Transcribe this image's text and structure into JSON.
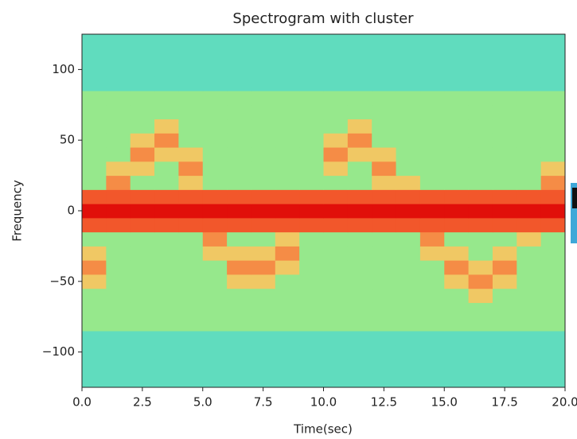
{
  "chart_data": {
    "type": "heatmap",
    "title": "Spectrogram with cluster",
    "x_label": "Time(sec)",
    "y_label": "Frequency",
    "colormap": "rainbow",
    "x": [
      0.5,
      1.5,
      2.5,
      3.5,
      4.5,
      5.5,
      6.5,
      7.5,
      8.5,
      9.5,
      10.5,
      11.5,
      12.5,
      13.5,
      14.5,
      15.5,
      16.5,
      17.5,
      18.5,
      19.5
    ],
    "y": [
      -120,
      -110,
      -100,
      -90,
      -80,
      -70,
      -60,
      -50,
      -40,
      -30,
      -20,
      -10,
      0,
      10,
      20,
      30,
      40,
      50,
      60,
      70,
      80,
      90,
      100,
      110,
      120
    ],
    "z": [
      [
        0.3,
        0.3,
        0.3,
        0.3,
        0.3,
        0.3,
        0.3,
        0.3,
        0.3,
        0.3,
        0.3,
        0.3,
        0.3,
        0.3,
        0.3,
        0.3,
        0.3,
        0.3,
        0.3,
        0.3
      ],
      [
        0.3,
        0.3,
        0.3,
        0.3,
        0.3,
        0.3,
        0.3,
        0.3,
        0.3,
        0.3,
        0.3,
        0.3,
        0.3,
        0.3,
        0.3,
        0.3,
        0.3,
        0.3,
        0.3,
        0.3
      ],
      [
        0.3,
        0.3,
        0.3,
        0.3,
        0.3,
        0.3,
        0.3,
        0.3,
        0.3,
        0.3,
        0.3,
        0.3,
        0.3,
        0.3,
        0.3,
        0.3,
        0.3,
        0.3,
        0.3,
        0.3
      ],
      [
        0.3,
        0.3,
        0.3,
        0.3,
        0.3,
        0.3,
        0.3,
        0.3,
        0.3,
        0.3,
        0.3,
        0.3,
        0.3,
        0.3,
        0.3,
        0.3,
        0.3,
        0.3,
        0.3,
        0.3
      ],
      [
        0.4,
        0.4,
        0.4,
        0.4,
        0.4,
        0.4,
        0.4,
        0.4,
        0.4,
        0.4,
        0.4,
        0.4,
        0.4,
        0.4,
        0.4,
        0.4,
        0.4,
        0.4,
        0.4,
        0.4
      ],
      [
        0.4,
        0.4,
        0.4,
        0.4,
        0.4,
        0.4,
        0.4,
        0.4,
        0.4,
        0.4,
        0.4,
        0.4,
        0.4,
        0.4,
        0.4,
        0.4,
        0.4,
        0.4,
        0.4,
        0.4
      ],
      [
        0.4,
        0.4,
        0.4,
        0.4,
        0.4,
        0.4,
        0.4,
        0.4,
        0.4,
        0.4,
        0.4,
        0.4,
        0.4,
        0.4,
        0.4,
        0.4,
        0.55,
        0.4,
        0.4,
        0.4
      ],
      [
        0.55,
        0.4,
        0.4,
        0.4,
        0.4,
        0.4,
        0.55,
        0.55,
        0.4,
        0.4,
        0.4,
        0.4,
        0.4,
        0.4,
        0.4,
        0.55,
        0.7,
        0.55,
        0.4,
        0.4
      ],
      [
        0.7,
        0.4,
        0.4,
        0.4,
        0.4,
        0.4,
        0.7,
        0.7,
        0.55,
        0.4,
        0.4,
        0.4,
        0.4,
        0.4,
        0.4,
        0.7,
        0.55,
        0.7,
        0.4,
        0.4
      ],
      [
        0.55,
        0.4,
        0.4,
        0.4,
        0.4,
        0.55,
        0.55,
        0.55,
        0.7,
        0.4,
        0.4,
        0.4,
        0.4,
        0.4,
        0.55,
        0.55,
        0.4,
        0.55,
        0.4,
        0.4
      ],
      [
        0.4,
        0.4,
        0.4,
        0.4,
        0.4,
        0.7,
        0.4,
        0.4,
        0.55,
        0.4,
        0.4,
        0.4,
        0.4,
        0.4,
        0.7,
        0.4,
        0.4,
        0.4,
        0.55,
        0.4
      ],
      [
        0.8,
        0.8,
        0.8,
        0.8,
        0.8,
        0.8,
        0.8,
        0.8,
        0.8,
        0.8,
        0.8,
        0.8,
        0.8,
        0.8,
        0.8,
        0.8,
        0.8,
        0.8,
        0.8,
        0.8
      ],
      [
        1.0,
        1.0,
        1.0,
        1.0,
        1.0,
        1.0,
        1.0,
        1.0,
        1.0,
        1.0,
        1.0,
        1.0,
        1.0,
        1.0,
        1.0,
        1.0,
        1.0,
        1.0,
        1.0,
        1.0
      ],
      [
        0.8,
        0.8,
        0.8,
        0.8,
        0.8,
        0.8,
        0.8,
        0.8,
        0.8,
        0.8,
        0.8,
        0.8,
        0.8,
        0.8,
        0.8,
        0.8,
        0.8,
        0.8,
        0.8,
        0.8
      ],
      [
        0.4,
        0.7,
        0.4,
        0.4,
        0.55,
        0.4,
        0.4,
        0.4,
        0.4,
        0.4,
        0.4,
        0.4,
        0.55,
        0.55,
        0.4,
        0.4,
        0.4,
        0.4,
        0.4,
        0.7
      ],
      [
        0.4,
        0.55,
        0.55,
        0.4,
        0.7,
        0.4,
        0.4,
        0.4,
        0.4,
        0.4,
        0.55,
        0.4,
        0.7,
        0.4,
        0.4,
        0.4,
        0.4,
        0.4,
        0.4,
        0.55
      ],
      [
        0.4,
        0.4,
        0.7,
        0.55,
        0.55,
        0.4,
        0.4,
        0.4,
        0.4,
        0.4,
        0.7,
        0.55,
        0.55,
        0.4,
        0.4,
        0.4,
        0.4,
        0.4,
        0.4,
        0.4
      ],
      [
        0.4,
        0.4,
        0.55,
        0.7,
        0.4,
        0.4,
        0.4,
        0.4,
        0.4,
        0.4,
        0.55,
        0.7,
        0.4,
        0.4,
        0.4,
        0.4,
        0.4,
        0.4,
        0.4,
        0.4
      ],
      [
        0.4,
        0.4,
        0.4,
        0.55,
        0.4,
        0.4,
        0.4,
        0.4,
        0.4,
        0.4,
        0.4,
        0.55,
        0.4,
        0.4,
        0.4,
        0.4,
        0.4,
        0.4,
        0.4,
        0.4
      ],
      [
        0.4,
        0.4,
        0.4,
        0.4,
        0.4,
        0.4,
        0.4,
        0.4,
        0.4,
        0.4,
        0.4,
        0.4,
        0.4,
        0.4,
        0.4,
        0.4,
        0.4,
        0.4,
        0.4,
        0.4
      ],
      [
        0.4,
        0.4,
        0.4,
        0.4,
        0.4,
        0.4,
        0.4,
        0.4,
        0.4,
        0.4,
        0.4,
        0.4,
        0.4,
        0.4,
        0.4,
        0.4,
        0.4,
        0.4,
        0.4,
        0.4
      ],
      [
        0.3,
        0.3,
        0.3,
        0.3,
        0.3,
        0.3,
        0.3,
        0.3,
        0.3,
        0.3,
        0.3,
        0.3,
        0.3,
        0.3,
        0.3,
        0.3,
        0.3,
        0.3,
        0.3,
        0.3
      ],
      [
        0.3,
        0.3,
        0.3,
        0.3,
        0.3,
        0.3,
        0.3,
        0.3,
        0.3,
        0.3,
        0.3,
        0.3,
        0.3,
        0.3,
        0.3,
        0.3,
        0.3,
        0.3,
        0.3,
        0.3
      ],
      [
        0.3,
        0.3,
        0.3,
        0.3,
        0.3,
        0.3,
        0.3,
        0.3,
        0.3,
        0.3,
        0.3,
        0.3,
        0.3,
        0.3,
        0.3,
        0.3,
        0.3,
        0.3,
        0.3,
        0.3
      ],
      [
        0.3,
        0.3,
        0.3,
        0.3,
        0.3,
        0.3,
        0.3,
        0.3,
        0.3,
        0.3,
        0.3,
        0.3,
        0.3,
        0.3,
        0.3,
        0.3,
        0.3,
        0.3,
        0.3,
        0.3
      ]
    ],
    "xlim": [
      0,
      20
    ],
    "ylim": [
      -125,
      125
    ],
    "xticks": [
      {
        "value": 0,
        "label": "0.0"
      },
      {
        "value": 2.5,
        "label": "2.5"
      },
      {
        "value": 5,
        "label": "5.0"
      },
      {
        "value": 7.5,
        "label": "7.5"
      },
      {
        "value": 10,
        "label": "10.0"
      },
      {
        "value": 12.5,
        "label": "12.5"
      },
      {
        "value": 15,
        "label": "15.0"
      },
      {
        "value": 17.5,
        "label": "17.5"
      },
      {
        "value": 20,
        "label": "20.0"
      }
    ],
    "yticks": [
      {
        "value": -100,
        "label": "−100"
      },
      {
        "value": -50,
        "label": "−50"
      },
      0,
      50,
      100
    ]
  }
}
